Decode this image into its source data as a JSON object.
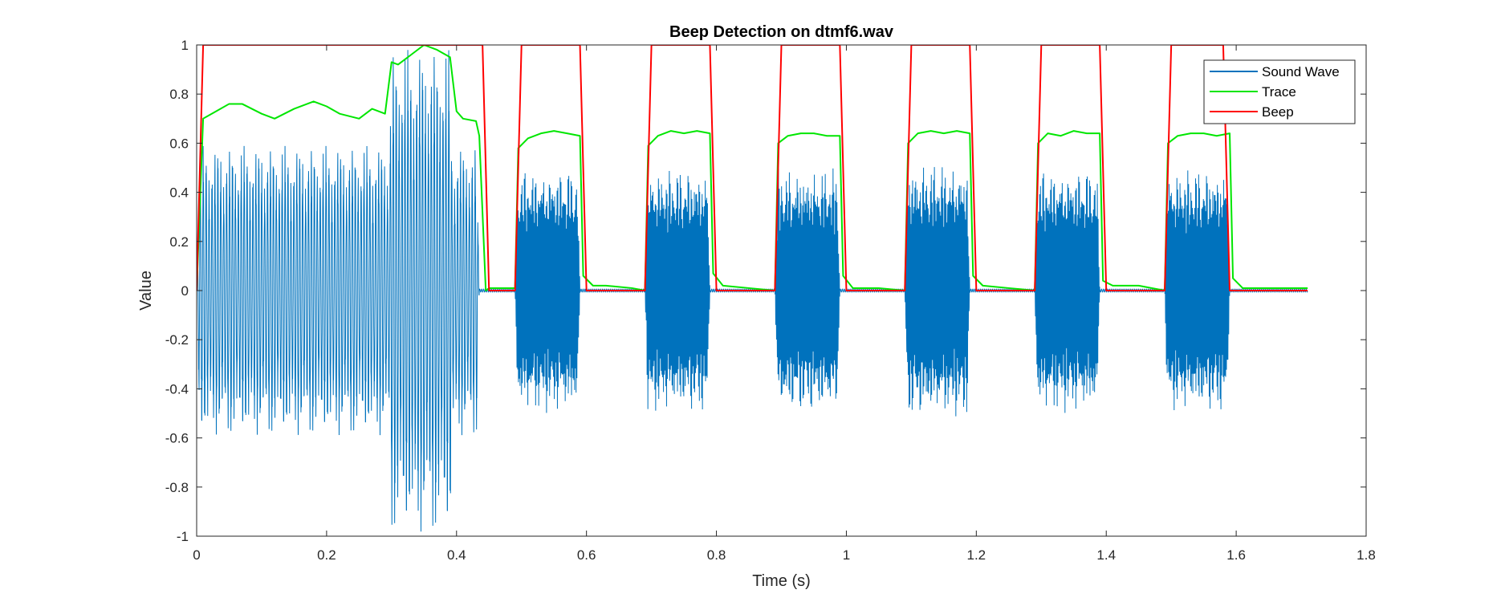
{
  "chart_data": {
    "type": "line",
    "title": "Beep Detection on dtmf6.wav",
    "xlabel": "Time (s)",
    "ylabel": "Value",
    "xlim": [
      0,
      1.8
    ],
    "ylim": [
      -1,
      1
    ],
    "xticks": [
      0,
      0.2,
      0.4,
      0.6,
      0.8,
      1,
      1.2,
      1.4,
      1.6,
      1.8
    ],
    "yticks": [
      -1,
      -0.8,
      -0.6,
      -0.4,
      -0.2,
      0,
      0.2,
      0.4,
      0.6,
      0.8,
      1
    ],
    "grid": false,
    "legend_position": "top-right",
    "series": [
      {
        "name": "Sound Wave",
        "color": "#0072BD",
        "kind": "oscillating",
        "bursts": [
          {
            "start": 0.0,
            "end": 0.435,
            "peak_amplitude": 0.6,
            "osc_period": 0.0045
          },
          {
            "start": 0.295,
            "end": 0.395,
            "peak_amplitude": 1.0,
            "osc_period": 0.0045
          },
          {
            "start": 0.49,
            "end": 0.59,
            "peak_amplitude": 0.5,
            "osc_period": 0.0012
          },
          {
            "start": 0.69,
            "end": 0.79,
            "peak_amplitude": 0.5,
            "osc_period": 0.0012
          },
          {
            "start": 0.89,
            "end": 0.99,
            "peak_amplitude": 0.5,
            "osc_period": 0.0012
          },
          {
            "start": 1.09,
            "end": 1.19,
            "peak_amplitude": 0.52,
            "osc_period": 0.0012
          },
          {
            "start": 1.29,
            "end": 1.39,
            "peak_amplitude": 0.5,
            "osc_period": 0.0012
          },
          {
            "start": 1.49,
            "end": 1.59,
            "peak_amplitude": 0.5,
            "osc_period": 0.0012
          }
        ],
        "end_time": 1.71
      },
      {
        "name": "Trace",
        "color": "#00E600",
        "x": [
          0,
          0.01,
          0.03,
          0.05,
          0.07,
          0.1,
          0.12,
          0.15,
          0.18,
          0.2,
          0.22,
          0.25,
          0.27,
          0.29,
          0.3,
          0.31,
          0.33,
          0.35,
          0.37,
          0.39,
          0.4,
          0.41,
          0.43,
          0.435,
          0.445,
          0.45,
          0.49,
          0.495,
          0.51,
          0.53,
          0.55,
          0.57,
          0.59,
          0.595,
          0.61,
          0.63,
          0.67,
          0.69,
          0.695,
          0.71,
          0.73,
          0.75,
          0.77,
          0.79,
          0.795,
          0.81,
          0.85,
          0.89,
          0.895,
          0.91,
          0.93,
          0.95,
          0.97,
          0.99,
          0.995,
          1.01,
          1.05,
          1.09,
          1.095,
          1.11,
          1.13,
          1.15,
          1.17,
          1.19,
          1.195,
          1.21,
          1.25,
          1.29,
          1.295,
          1.31,
          1.33,
          1.35,
          1.37,
          1.39,
          1.395,
          1.41,
          1.45,
          1.49,
          1.495,
          1.51,
          1.53,
          1.55,
          1.57,
          1.59,
          1.595,
          1.61,
          1.65,
          1.71
        ],
        "y": [
          0,
          0.7,
          0.73,
          0.76,
          0.76,
          0.72,
          0.7,
          0.74,
          0.77,
          0.75,
          0.72,
          0.7,
          0.74,
          0.72,
          0.93,
          0.92,
          0.96,
          1.0,
          0.98,
          0.95,
          0.73,
          0.7,
          0.69,
          0.63,
          0.0,
          0.01,
          0.01,
          0.58,
          0.62,
          0.64,
          0.65,
          0.64,
          0.63,
          0.06,
          0.02,
          0.02,
          0.01,
          0.0,
          0.59,
          0.63,
          0.65,
          0.64,
          0.65,
          0.64,
          0.07,
          0.02,
          0.01,
          0.0,
          0.6,
          0.63,
          0.64,
          0.64,
          0.63,
          0.63,
          0.06,
          0.01,
          0.01,
          0.0,
          0.6,
          0.64,
          0.65,
          0.64,
          0.65,
          0.64,
          0.06,
          0.02,
          0.01,
          0.0,
          0.6,
          0.64,
          0.63,
          0.65,
          0.64,
          0.64,
          0.04,
          0.02,
          0.02,
          0.0,
          0.6,
          0.63,
          0.64,
          0.64,
          0.63,
          0.64,
          0.05,
          0.01,
          0.01,
          0.01
        ]
      },
      {
        "name": "Beep",
        "color": "#FF0000",
        "x": [
          0,
          0.01,
          0.44,
          0.45,
          0.49,
          0.5,
          0.59,
          0.6,
          0.69,
          0.7,
          0.79,
          0.8,
          0.89,
          0.9,
          0.99,
          1.0,
          1.09,
          1.1,
          1.19,
          1.2,
          1.29,
          1.3,
          1.39,
          1.4,
          1.49,
          1.5,
          1.58,
          1.59,
          1.71
        ],
        "y": [
          0,
          1,
          1,
          0,
          0,
          1,
          1,
          0,
          0,
          1,
          1,
          0,
          0,
          1,
          1,
          0,
          0,
          1,
          1,
          0,
          0,
          1,
          1,
          0,
          0,
          1,
          1,
          0,
          0
        ]
      }
    ]
  }
}
